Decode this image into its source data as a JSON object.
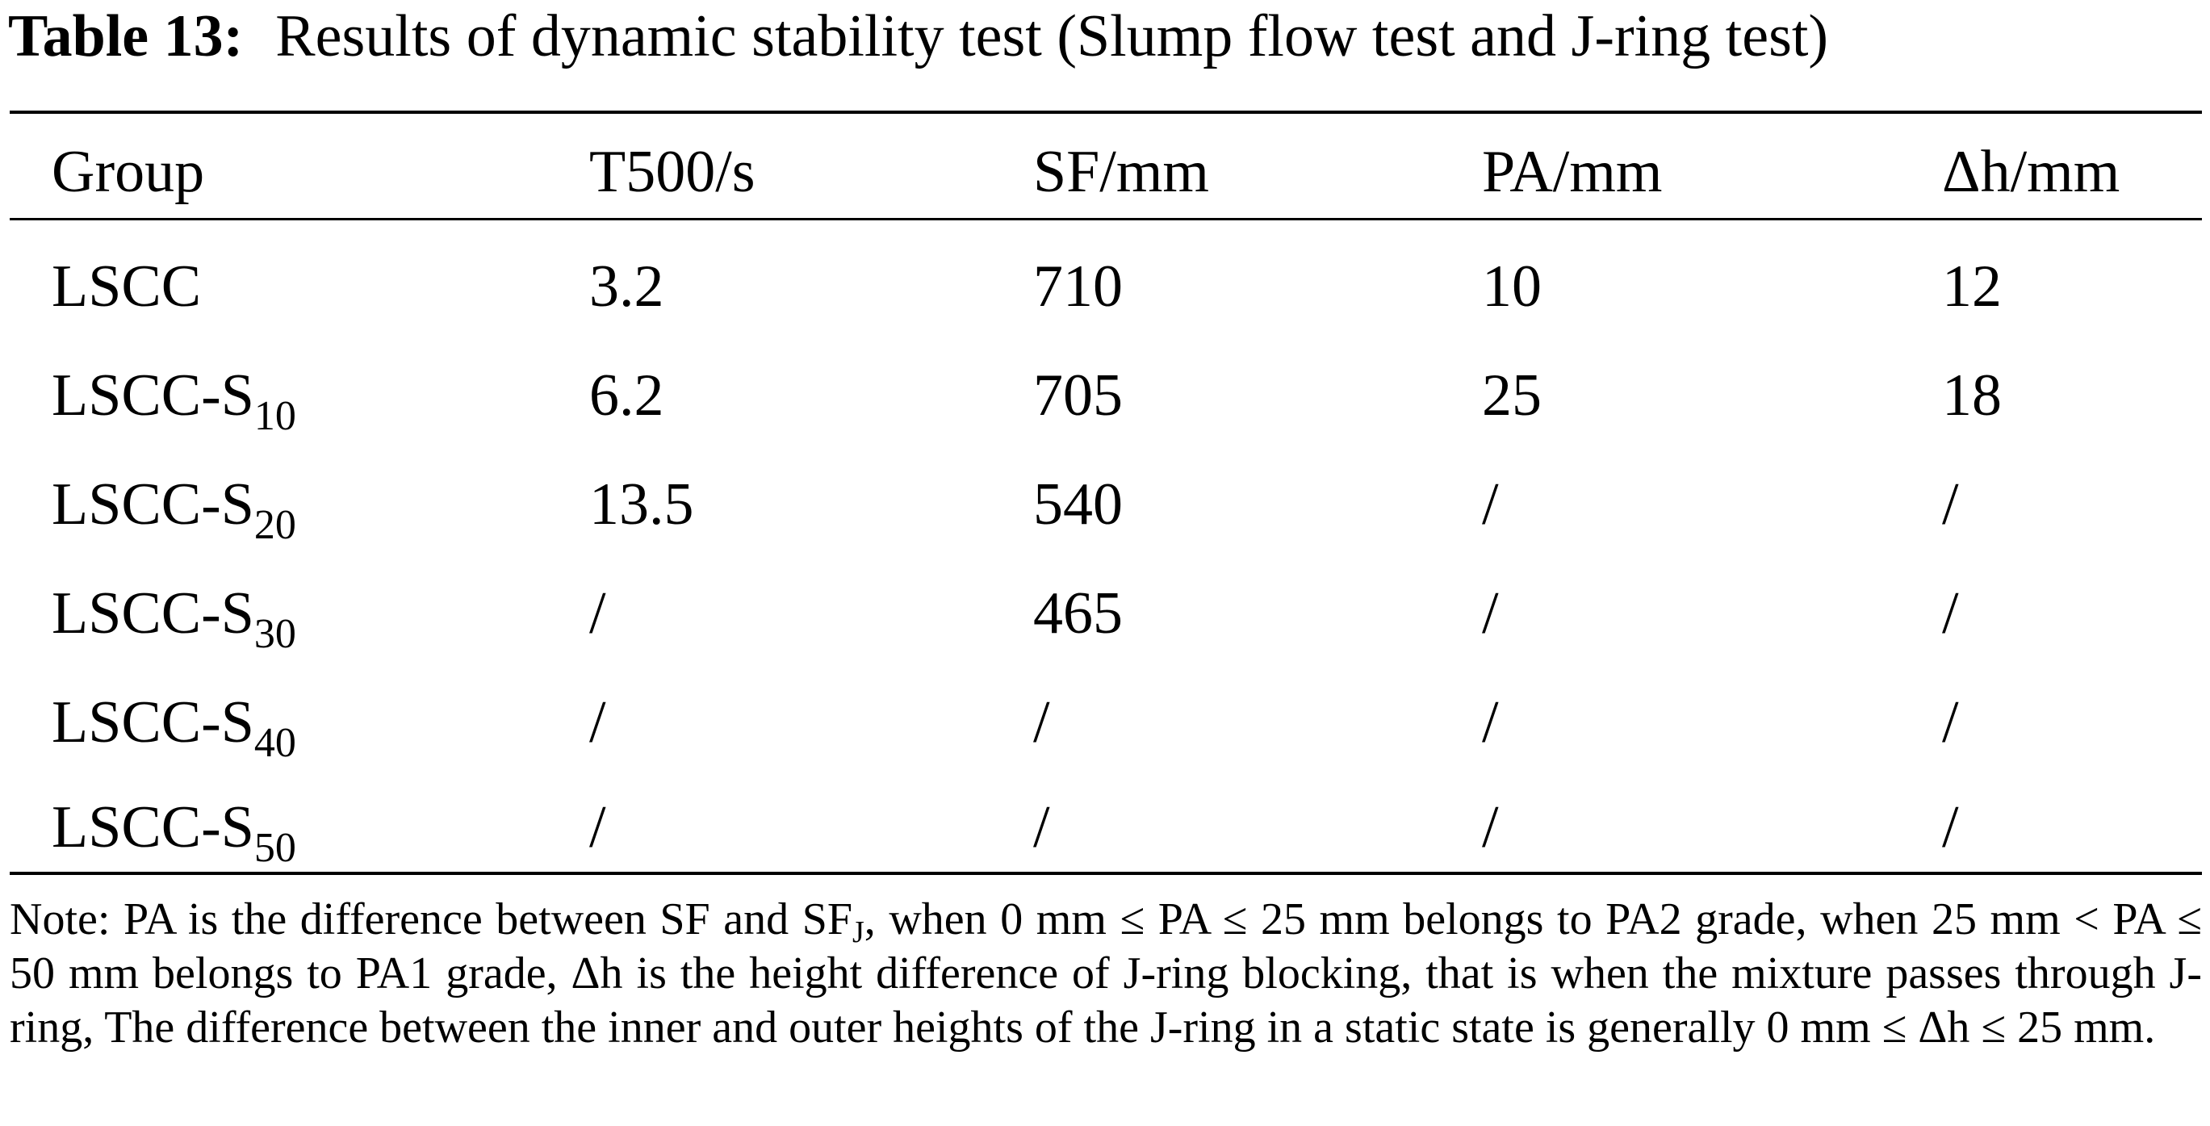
{
  "table": {
    "caption_label": "Table 13:",
    "caption_text": "Results of dynamic stability test (Slump flow test and J-ring test)",
    "headers": [
      "Group",
      "T500/s",
      "SF/mm",
      "PA/mm",
      "Δh/mm"
    ],
    "rows": [
      {
        "group": "LSCC",
        "sub": "",
        "t500": "3.2",
        "sf": "710",
        "pa": "10",
        "dh": "12"
      },
      {
        "group": "LSCC-S",
        "sub": "10",
        "t500": "6.2",
        "sf": "705",
        "pa": "25",
        "dh": "18"
      },
      {
        "group": "LSCC-S",
        "sub": "20",
        "t500": "13.5",
        "sf": "540",
        "pa": "/",
        "dh": "/"
      },
      {
        "group": "LSCC-S",
        "sub": "30",
        "t500": "/",
        "sf": "465",
        "pa": "/",
        "dh": "/"
      },
      {
        "group": "LSCC-S",
        "sub": "40",
        "t500": "/",
        "sf": "/",
        "pa": "/",
        "dh": "/"
      },
      {
        "group": "LSCC-S",
        "sub": "50",
        "t500": "/",
        "sf": "/",
        "pa": "/",
        "dh": "/"
      }
    ]
  },
  "note": {
    "before_sub": "Note: PA is the difference between SF and SF",
    "sub": "J",
    "after_sub": ", when 0 mm ≤ PA ≤ 25 mm belongs to PA2 grade, when 25 mm < PA ≤ 50 mm belongs to PA1 grade, Δh is the height difference of J-ring blocking, that is when the mixture passes through J-ring, The difference between the inner and outer heights of the J-ring in a static state is generally 0 mm ≤ Δh ≤ 25 mm."
  }
}
